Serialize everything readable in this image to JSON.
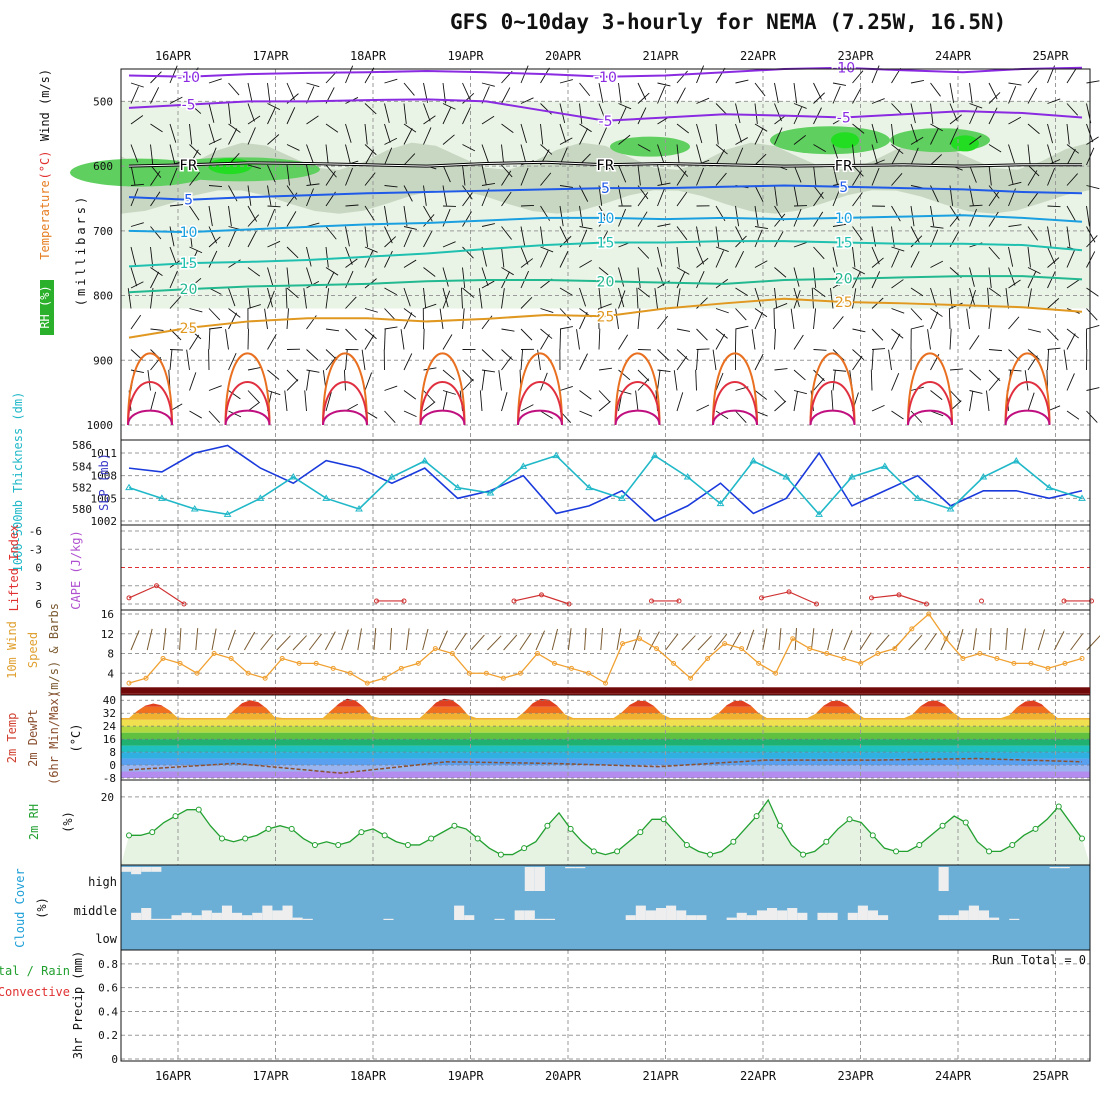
{
  "title": "GFS 0~10day 3-hourly for NEMA (7.25W, 16.5N)",
  "chart_data": [
    {
      "panel": "upper-air",
      "type": "line",
      "ylabel_parts": [
        "RH (%)",
        "Temperature",
        " (°C)",
        "Wind (m/s)"
      ],
      "ylabel_unit": "(millibars)",
      "yticks": [
        500,
        600,
        700,
        800,
        900,
        1000
      ],
      "ylim": [
        1000,
        450
      ],
      "freezing_label": "FR",
      "temperature_contours": [
        {
          "label": "-10",
          "color": "#8a2be2",
          "p": [
            460,
            462,
            458,
            456,
            455,
            453,
            455,
            458,
            462,
            460,
            455,
            450,
            448,
            452,
            455,
            450,
            448
          ]
        },
        {
          "label": "-5",
          "color": "#8a2be2",
          "p": [
            510,
            505,
            500,
            500,
            498,
            497,
            500,
            515,
            530,
            525,
            520,
            522,
            525,
            520,
            515,
            518,
            525
          ]
        },
        {
          "label": "FR",
          "color": "#000000",
          "p": [
            600,
            598,
            595,
            596,
            598,
            600,
            596,
            594,
            598,
            596,
            598,
            600,
            599,
            598,
            600,
            598,
            598
          ]
        },
        {
          "label": "5",
          "color": "#1f5ae8",
          "p": [
            648,
            652,
            648,
            645,
            642,
            640,
            638,
            636,
            634,
            634,
            632,
            630,
            632,
            634,
            636,
            640,
            642
          ]
        },
        {
          "label": "10",
          "color": "#1aa0e0",
          "p": [
            700,
            702,
            698,
            694,
            690,
            688,
            684,
            680,
            680,
            682,
            680,
            682,
            680,
            678,
            676,
            680,
            686
          ]
        },
        {
          "label": "15",
          "color": "#20c0b0",
          "p": [
            755,
            750,
            748,
            745,
            740,
            735,
            728,
            722,
            718,
            718,
            716,
            716,
            718,
            720,
            720,
            722,
            730
          ]
        },
        {
          "label": "20",
          "color": "#22b890",
          "p": [
            795,
            790,
            786,
            784,
            782,
            778,
            776,
            776,
            778,
            780,
            782,
            776,
            774,
            772,
            770,
            770,
            775
          ]
        },
        {
          "label": "25",
          "color": "#e09820",
          "p": [
            865,
            850,
            840,
            835,
            835,
            840,
            836,
            830,
            832,
            820,
            812,
            805,
            810,
            812,
            815,
            818,
            825
          ]
        }
      ]
    },
    {
      "panel": "thickness-slp",
      "type": "line",
      "ylabel_left": "1000-500mb Thickness (dm)",
      "ylabel_right": "SLP (mb)",
      "yticks_left": [
        580,
        582,
        584,
        586
      ],
      "yticks_right": [
        1002,
        1005,
        1008,
        1011
      ],
      "series": [
        {
          "name": "SLP (mb)",
          "color": "#1a3adc",
          "values": [
            1009,
            1008.5,
            1011,
            1012,
            1009,
            1007,
            1010,
            1009,
            1007,
            1009,
            1005,
            1006,
            1008,
            1003,
            1004,
            1006,
            1002,
            1004,
            1007,
            1003,
            1005,
            1011,
            1004,
            1006,
            1008,
            1004,
            1006,
            1006,
            1005,
            1006
          ]
        },
        {
          "name": "Thickness (dm)",
          "color": "#20b8c8",
          "values": [
            582,
            581,
            580,
            579.5,
            581,
            583,
            581,
            580,
            583,
            584.5,
            582,
            581.5,
            584,
            585,
            582,
            581,
            585,
            583,
            580.5,
            584.5,
            583,
            579.5,
            583,
            584,
            581,
            580,
            583,
            584.5,
            582,
            581
          ]
        }
      ]
    },
    {
      "panel": "lifted-cape",
      "type": "line",
      "ylabel": "Lifted Index",
      "ylabel_cape": "CAPE (J/kg)",
      "yticks": [
        -6,
        -3,
        0,
        3,
        6
      ],
      "series": [
        {
          "name": "Lifted Index",
          "color": "#d03030",
          "values": [
            5,
            3,
            6,
            null,
            null,
            null,
            null,
            null,
            null,
            5.5,
            5.5,
            null,
            null,
            null,
            5.5,
            4.5,
            6,
            null,
            null,
            5.5,
            5.5,
            null,
            null,
            5,
            4,
            6,
            null,
            5,
            4.5,
            6,
            null,
            5.5,
            null,
            null,
            5.5,
            5.5
          ]
        }
      ]
    },
    {
      "panel": "wind-10m",
      "type": "line",
      "ylabel_a": "10m Wind",
      "ylabel_b": "Speed",
      "ylabel_c": "(m/s) & Barbs",
      "yticks": [
        4,
        8,
        12,
        16
      ],
      "series": [
        {
          "name": "10m wind speed",
          "color": "#f0a030",
          "values": [
            2,
            3,
            7,
            6,
            4,
            8,
            7,
            4,
            3,
            7,
            6,
            6,
            5,
            4,
            2,
            3,
            5,
            6,
            9,
            8,
            4,
            4,
            3,
            4,
            8,
            6,
            5,
            4,
            2,
            10,
            11,
            9,
            6,
            3,
            7,
            10,
            9,
            6,
            4,
            11,
            9,
            8,
            7,
            6,
            8,
            9,
            13,
            16,
            11,
            7,
            8,
            7,
            6,
            6,
            5,
            6,
            7
          ]
        }
      ]
    },
    {
      "panel": "temp-2m",
      "type": "area",
      "ylabel_a": "2m Temp",
      "ylabel_b": "2m DewPt",
      "ylabel_c": "(6hr Min/Max)",
      "ylabel_unit": "(°C)",
      "yticks": [
        -8,
        0,
        8,
        16,
        24,
        32,
        40
      ],
      "max_temps": [
        38,
        40,
        41,
        41,
        40,
        40,
        40,
        40,
        40
      ],
      "min_temps": [
        29,
        28,
        29,
        29,
        29,
        29,
        29,
        29,
        29
      ],
      "dewpoint": [
        -3,
        1,
        -5,
        2,
        1,
        -1,
        3,
        3,
        4,
        2
      ]
    },
    {
      "panel": "rh-2m",
      "type": "area",
      "ylabel": "2m RH",
      "ylabel_unit": "(%)",
      "yticks": [
        20
      ],
      "series": [
        {
          "name": "2m RH",
          "color": "#22a030",
          "values": [
            8,
            8,
            9,
            12,
            14,
            16,
            16,
            11,
            7,
            6,
            7,
            8,
            10,
            11,
            10,
            7,
            5,
            6,
            5,
            6,
            9,
            10,
            8,
            6,
            5,
            5,
            7,
            9,
            11,
            10,
            7,
            4,
            2,
            2,
            4,
            6,
            11,
            15,
            10,
            6,
            3,
            2,
            3,
            6,
            9,
            13,
            13,
            9,
            5,
            3,
            2,
            3,
            6,
            10,
            14,
            19,
            11,
            5,
            2,
            3,
            6,
            10,
            13,
            12,
            8,
            4,
            3,
            3,
            5,
            8,
            11,
            14,
            12,
            6,
            3,
            3,
            5,
            8,
            10,
            13,
            17,
            12,
            7
          ]
        }
      ]
    },
    {
      "panel": "cloud-cover",
      "type": "heatmap",
      "ylabel": "Cloud Cover",
      "ylabel_unit": "(%)",
      "levels": [
        "high",
        "middle",
        "low"
      ],
      "bg_color": "#6baed6",
      "high_bars": [
        20,
        30,
        20,
        20,
        0,
        0,
        0,
        0,
        0,
        0,
        0,
        0,
        0,
        0,
        0,
        0,
        0,
        0,
        0,
        0,
        0,
        0,
        0,
        0,
        0,
        0,
        0,
        0,
        0,
        0,
        0,
        0,
        0,
        0,
        0,
        0,
        0,
        0,
        0,
        0,
        100,
        100,
        0,
        0,
        5,
        5,
        0,
        0,
        0,
        0,
        0,
        0,
        0,
        0,
        0,
        0,
        0,
        0,
        0,
        0,
        0,
        0,
        0,
        0,
        0,
        0,
        0,
        0,
        0,
        0,
        0,
        0,
        0,
        0,
        0,
        0,
        0,
        0,
        0,
        0,
        0,
        100,
        0,
        0,
        0,
        0,
        0,
        0,
        0,
        0,
        0,
        0,
        5,
        5,
        0,
        0
      ],
      "mid_bars": [
        0,
        30,
        50,
        5,
        5,
        20,
        30,
        20,
        40,
        30,
        60,
        30,
        20,
        30,
        60,
        40,
        60,
        10,
        5,
        0,
        0,
        0,
        0,
        0,
        0,
        0,
        5,
        0,
        0,
        0,
        0,
        0,
        0,
        60,
        20,
        0,
        0,
        5,
        0,
        40,
        40,
        5,
        5,
        0,
        0,
        0,
        0,
        0,
        0,
        0,
        20,
        60,
        40,
        50,
        60,
        40,
        20,
        20,
        0,
        0,
        10,
        30,
        20,
        40,
        50,
        40,
        50,
        30,
        0,
        30,
        30,
        0,
        30,
        60,
        40,
        20,
        0,
        0,
        0,
        0,
        0,
        20,
        20,
        40,
        60,
        40,
        10,
        0,
        5,
        0,
        0,
        0,
        0,
        0,
        0,
        0,
        0,
        0
      ]
    },
    {
      "panel": "precip",
      "type": "bar",
      "ylabel": "3hr Precip (mm)",
      "ylabel_total": "Total / Rain",
      "ylabel_conv": "Convective",
      "run_total": "Run Total = 0",
      "yticks": [
        0,
        0.2,
        0.4,
        0.6,
        0.8
      ],
      "values": []
    }
  ],
  "dates": [
    "16APR",
    "17APR",
    "18APR",
    "19APR",
    "20APR",
    "21APR",
    "22APR",
    "23APR",
    "24APR",
    "25APR"
  ],
  "colors": {
    "rh_shade_light": "#eaf4e6",
    "rh_shade_mid": "#c8d7c2",
    "rh_shade_dark": "#a8b4a5",
    "rh_shade_green": "#5fcf5f",
    "rh_shade_bright": "#22dd22"
  }
}
